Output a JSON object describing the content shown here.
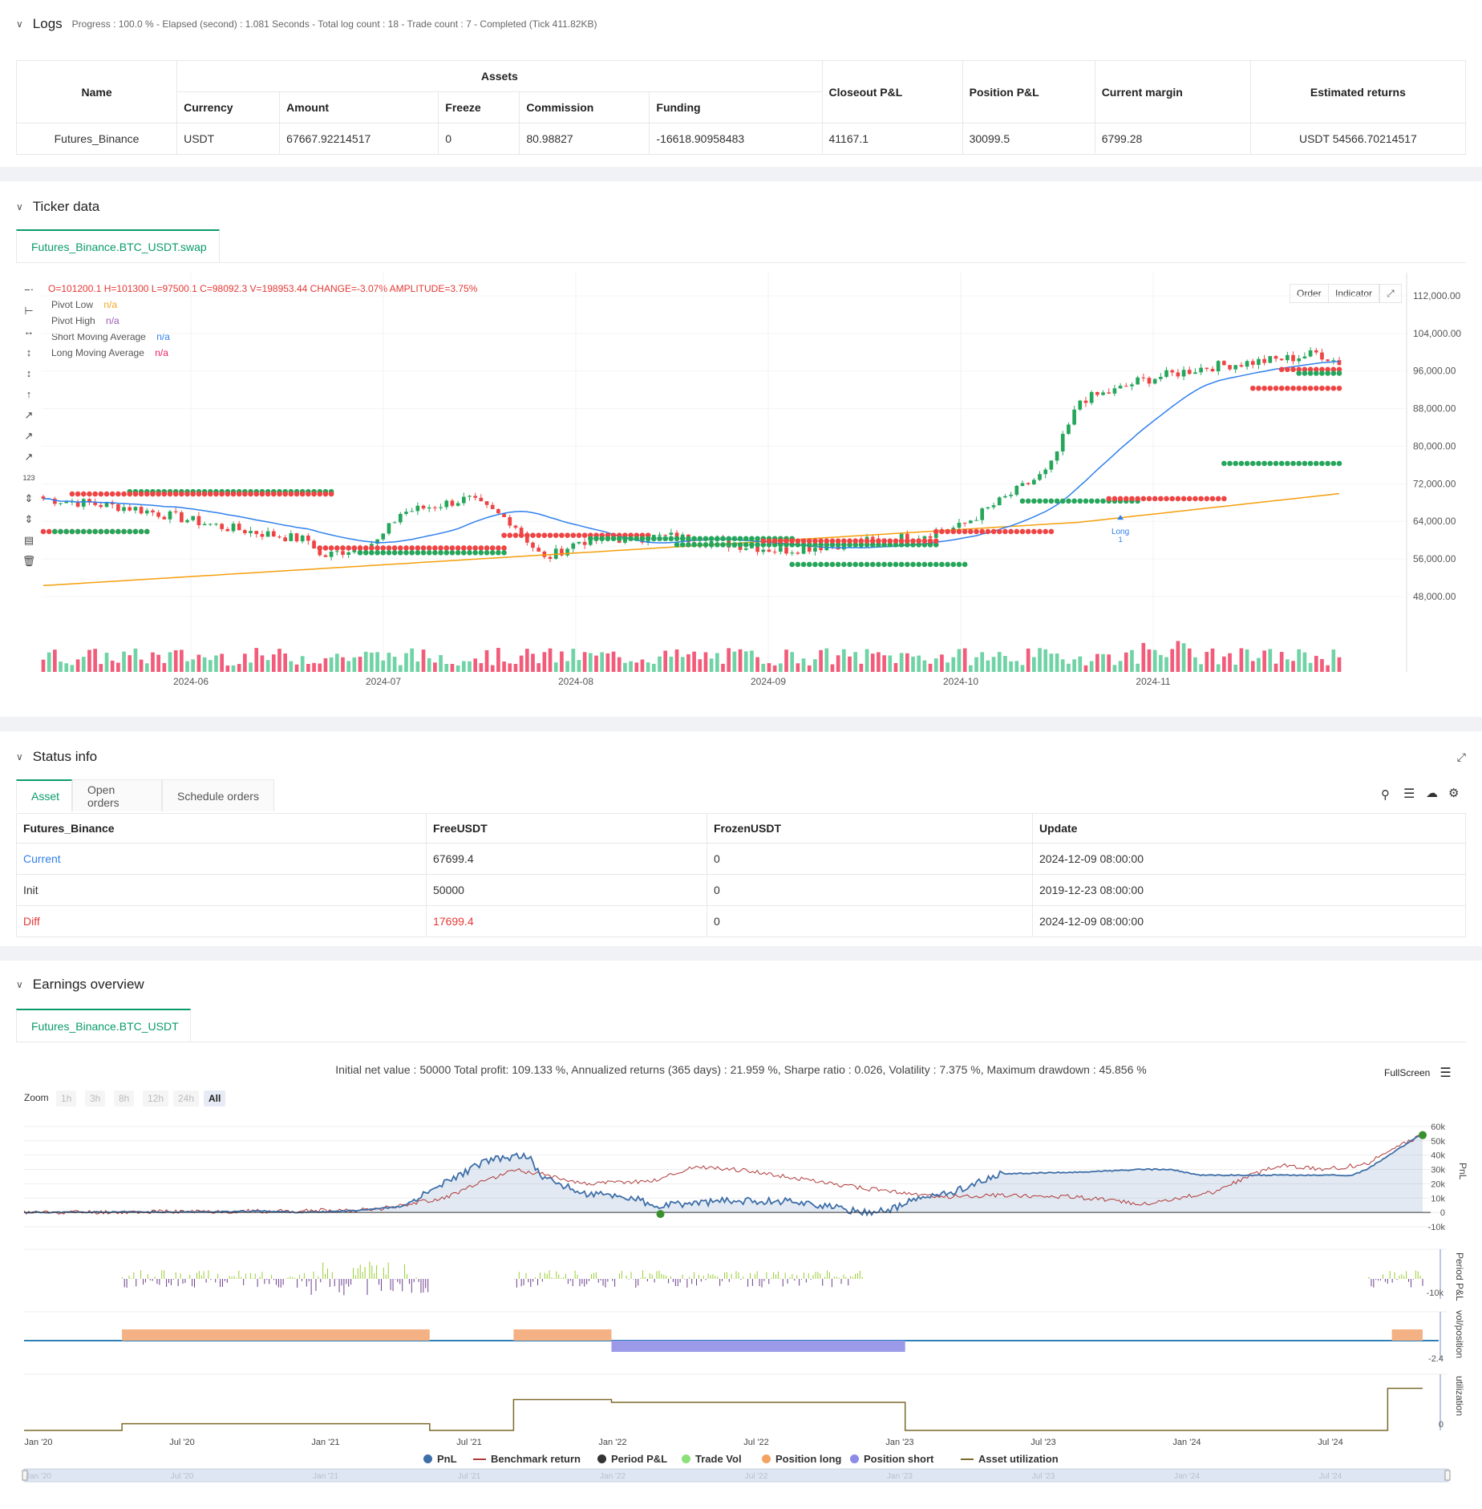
{
  "logs": {
    "title": "Logs",
    "status": "Progress : 100.0 % - Elapsed (second) : 1.081  Seconds - Total log count : 18 - Trade count : 7 - Completed (Tick 411.82KB)",
    "table": {
      "name_header": "Name",
      "assets_header": "Assets",
      "sub_headers": [
        "Currency",
        "Amount",
        "Freeze",
        "Commission",
        "Funding"
      ],
      "right_headers": [
        "Closeout P&L",
        "Position P&L",
        "Current margin",
        "Estimated returns"
      ],
      "row": [
        "Futures_Binance",
        "USDT",
        "67667.92214517",
        "0",
        "80.98827",
        "-16618.90958483",
        "41167.1",
        "30099.5",
        "6799.28",
        "USDT 54566.70214517"
      ]
    }
  },
  "ticker": {
    "title": "Ticker data",
    "tab": "Futures_Binance.BTC_USDT.swap",
    "ohlc": "O=101200.1  H=101300  L=97500.1  C=98092.3  V=198953.44  CHANGE=-3.07%  AMPLITUDE=3.75%",
    "legend": [
      {
        "name": "Pivot Low",
        "value": "n/a",
        "color": "#f5a623"
      },
      {
        "name": "Pivot High",
        "value": "n/a",
        "color": "#9b59b6"
      },
      {
        "name": "Short Moving Average",
        "value": "n/a",
        "color": "#2f80ed"
      },
      {
        "name": "Long Moving Average",
        "value": "n/a",
        "color": "#e91e63"
      }
    ],
    "buttons": [
      "Order",
      "Indicator"
    ],
    "y_ticks": [
      "112,000.00",
      "104,000.00",
      "96,000.00",
      "88,000.00",
      "80,000.00",
      "72,000.00",
      "64,000.00",
      "56,000.00",
      "48,000.00"
    ],
    "x_ticks": [
      "2024-06",
      "2024-07",
      "2024-08",
      "2024-09",
      "2024-10",
      "2024-11"
    ],
    "marker_label": "Long",
    "marker_sub": "1"
  },
  "status": {
    "title": "Status info",
    "tabs": [
      "Asset",
      "Open orders",
      "Schedule orders"
    ],
    "headers": [
      "Futures_Binance",
      "FreeUSDT",
      "FrozenUSDT",
      "Update"
    ],
    "rows": [
      [
        "Current",
        "67699.4",
        "0",
        "2024-12-09 08:00:00"
      ],
      [
        "Init",
        "50000",
        "0",
        "2019-12-23 08:00:00"
      ],
      [
        "Diff",
        "17699.4",
        "0",
        "2024-12-09 08:00:00"
      ]
    ]
  },
  "earnings": {
    "title": "Earnings overview",
    "tab": "Futures_Binance.BTC_USDT",
    "summary": "Initial net value : 50000 Total profit: 109.133 %, Annualized returns (365 days) : 21.959 %, Sharpe ratio : 0.026, Volatility : 7.375 %, Maximum drawdown : 45.856 %",
    "fullscreen": "FullScreen",
    "zoom_label": "Zoom",
    "zoom_buttons": [
      "1h",
      "3h",
      "8h",
      "12h",
      "24h",
      "All"
    ],
    "pnl_ticks": [
      "60k",
      "50k",
      "40k",
      "30k",
      "20k",
      "10k",
      "0",
      "-10k"
    ],
    "pnl_axis": "PnL",
    "period_axis": "Period P&L",
    "period_tick": "-10k",
    "vol_axis": "vol/position",
    "vol_tick": "-2.4",
    "util_axis": "utilization",
    "util_tick": "0",
    "x_ticks": [
      "Jan '20",
      "Jul '20",
      "Jan '21",
      "Jul '21",
      "Jan '22",
      "Jul '22",
      "Jan '23",
      "Jul '23",
      "Jan '24",
      "Jul '24"
    ],
    "legend": [
      {
        "name": "PnL",
        "color": "#3d6ea8",
        "kind": "dot"
      },
      {
        "name": "Benchmark return",
        "color": "#b03a3a",
        "kind": "line"
      },
      {
        "name": "Period P&L",
        "color": "#333333",
        "kind": "dot"
      },
      {
        "name": "Trade Vol",
        "color": "#8be07a",
        "kind": "dot"
      },
      {
        "name": "Position long",
        "color": "#f4a261",
        "kind": "dot"
      },
      {
        "name": "Position short",
        "color": "#8c8ce8",
        "kind": "dot"
      },
      {
        "name": "Asset utilization",
        "color": "#7a6a2a",
        "kind": "line"
      }
    ]
  }
}
